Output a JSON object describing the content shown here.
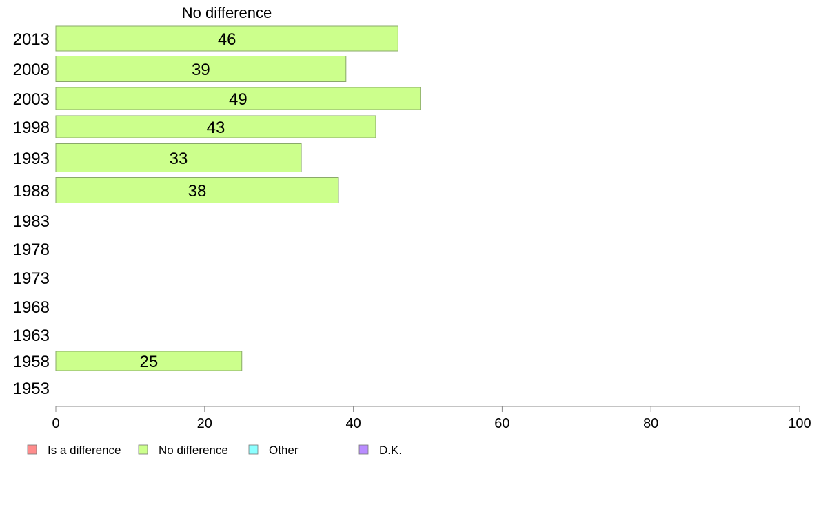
{
  "chart_data": {
    "type": "bar",
    "orientation": "horizontal",
    "title": "No difference",
    "categories": [
      "2013",
      "2008",
      "2003",
      "1998",
      "1993",
      "1988",
      "1983",
      "1978",
      "1973",
      "1968",
      "1963",
      "1958",
      "1953"
    ],
    "series": [
      {
        "name": "No difference",
        "values": [
          46,
          39,
          49,
          43,
          33,
          38,
          null,
          null,
          null,
          null,
          null,
          25,
          null
        ]
      }
    ],
    "xlim": [
      0,
      100
    ],
    "xticks": [
      0,
      20,
      40,
      60,
      80,
      100
    ],
    "grid": false,
    "legend_position": "bottom",
    "legend": [
      {
        "label": "Is a difference",
        "color": "#ff8c8c"
      },
      {
        "label": "No difference",
        "color": "#ccff8c"
      },
      {
        "label": "Other",
        "color": "#8cffff"
      },
      {
        "label": "D.K.",
        "color": "#b98cff"
      }
    ],
    "colors": {
      "bar_fill": "#ccff8c",
      "bar_stroke": "#8aa86a",
      "axis": "#888888"
    }
  }
}
